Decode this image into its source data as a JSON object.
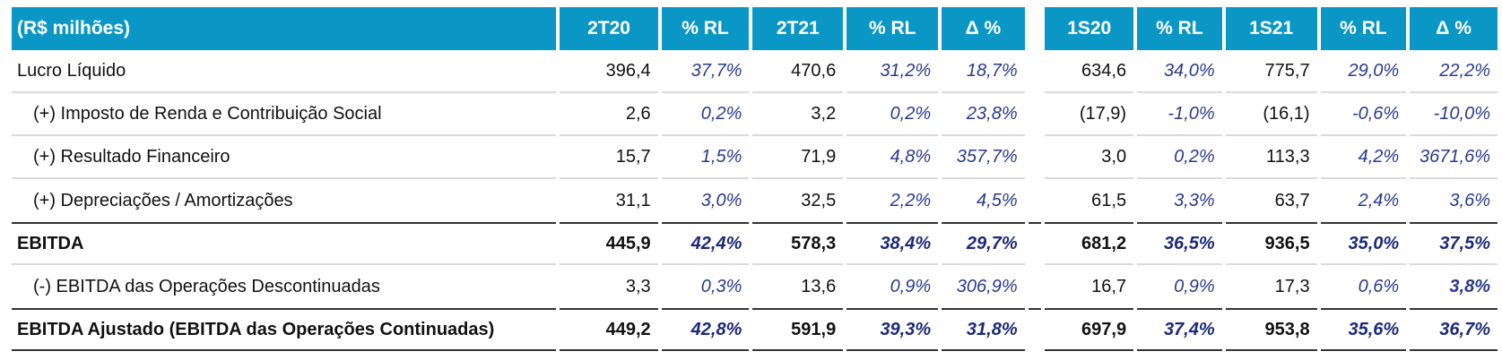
{
  "header": {
    "label": "(R$ milhões)",
    "cols": [
      "2T20",
      "% RL",
      "2T21",
      "% RL",
      "Δ %",
      "1S20",
      "% RL",
      "1S21",
      "% RL",
      "Δ %"
    ]
  },
  "rows": [
    {
      "label": "Lucro Líquido",
      "values": [
        "396,4",
        "37,7%",
        "470,6",
        "31,2%",
        "18,7%",
        "634,6",
        "34,0%",
        "775,7",
        "29,0%",
        "22,2%"
      ]
    },
    {
      "label": "(+) Imposto de Renda e Contribuição Social",
      "values": [
        "2,6",
        "0,2%",
        "3,2",
        "0,2%",
        "23,8%",
        "(17,9)",
        "-1,0%",
        "(16,1)",
        "-0,6%",
        "-10,0%"
      ]
    },
    {
      "label": "(+) Resultado Financeiro",
      "values": [
        "15,7",
        "1,5%",
        "71,9",
        "4,8%",
        "357,7%",
        "3,0",
        "0,2%",
        "113,3",
        "4,2%",
        "3671,6%"
      ]
    },
    {
      "label": "(+) Depreciações / Amortizações",
      "values": [
        "31,1",
        "3,0%",
        "32,5",
        "2,2%",
        "4,5%",
        "61,5",
        "3,3%",
        "63,7",
        "2,4%",
        "3,6%"
      ]
    },
    {
      "label": "EBITDA",
      "values": [
        "445,9",
        "42,4%",
        "578,3",
        "38,4%",
        "29,7%",
        "681,2",
        "36,5%",
        "936,5",
        "35,0%",
        "37,5%"
      ]
    },
    {
      "label": "(-) EBITDA das Operações Descontinuadas",
      "values": [
        "3,3",
        "0,3%",
        "13,6",
        "0,9%",
        "306,9%",
        "16,7",
        "0,9%",
        "17,3",
        "0,6%",
        "3,8%"
      ]
    },
    {
      "label": "EBITDA Ajustado (EBITDA das Operações Continuadas)",
      "values": [
        "449,2",
        "42,8%",
        "591,9",
        "39,3%",
        "31,8%",
        "697,9",
        "37,4%",
        "953,8",
        "35,6%",
        "36,7%"
      ]
    }
  ]
}
